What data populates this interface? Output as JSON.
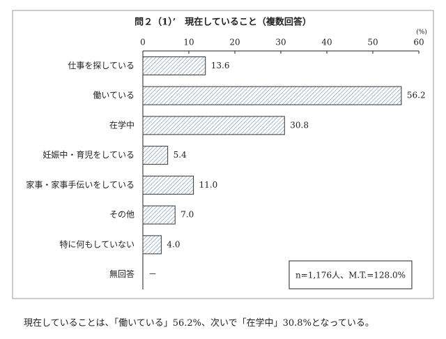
{
  "chart_data": {
    "type": "bar",
    "orientation": "horizontal",
    "title": "問２（1）’　現在していること（複数回答）",
    "unit": "(%)",
    "categories": [
      "仕事を探している",
      "働いている",
      "在学中",
      "妊娠中・育児をしている",
      "家事・家事手伝いをしている",
      "その他",
      "特に何もしていない",
      "無回答"
    ],
    "values": [
      13.6,
      56.2,
      30.8,
      5.4,
      11.0,
      7.0,
      4.0,
      null
    ],
    "value_labels": [
      "13.6",
      "56.2",
      "30.8",
      "5.4",
      "11.0",
      "7.0",
      "4.0",
      "－"
    ],
    "color": "#6f8fb5",
    "xlim": [
      0,
      60
    ],
    "xticks": [
      0,
      10,
      20,
      30,
      40,
      50,
      60
    ],
    "annotation": "n=1,176人、M.T.=128.0%",
    "caption": "現在していることは、「働いている」56.2%、次いで「在学中」30.8%となっている。"
  }
}
